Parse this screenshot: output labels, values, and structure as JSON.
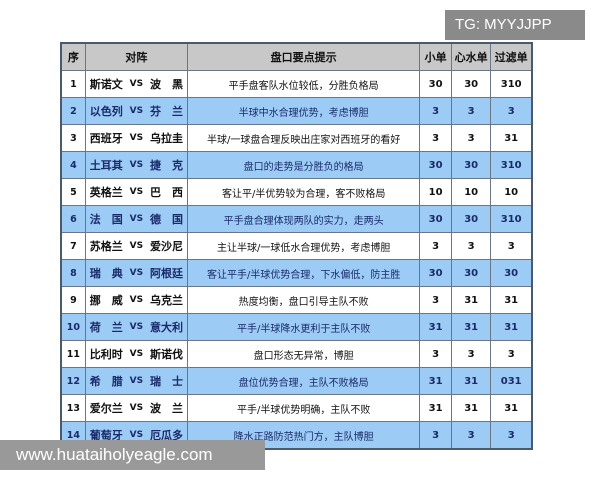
{
  "watermark_top": "TG: MYYJJPP",
  "watermark_bottom": "www.huataiholyeagle.com",
  "table": {
    "headers": [
      "序",
      "对阵",
      "盘口要点提示",
      "小单",
      "心水单",
      "过滤单"
    ],
    "rows": [
      {
        "seq": "1",
        "home": "斯诺文",
        "vs": "VS",
        "away": "波　黑",
        "tip": "平手盘客队水位较低，分胜负格局",
        "small": "30",
        "pick": "30",
        "filter": "310",
        "highlight": false
      },
      {
        "seq": "2",
        "home": "以色列",
        "vs": "VS",
        "away": "芬　兰",
        "tip": "半球中水合理优势，考虑博胆",
        "small": "3",
        "pick": "3",
        "filter": "3",
        "highlight": true
      },
      {
        "seq": "3",
        "home": "西班牙",
        "vs": "VS",
        "away": "乌拉圭",
        "tip": "半球/一球盘合理反映出庄家对西班牙的看好",
        "small": "3",
        "pick": "3",
        "filter": "31",
        "highlight": false
      },
      {
        "seq": "4",
        "home": "土耳其",
        "vs": "VS",
        "away": "捷　克",
        "tip": "盘口的走势是分胜负的格局",
        "small": "30",
        "pick": "30",
        "filter": "310",
        "highlight": true
      },
      {
        "seq": "5",
        "home": "英格兰",
        "vs": "VS",
        "away": "巴　西",
        "tip": "客让平/半优势较为合理，客不败格局",
        "small": "10",
        "pick": "10",
        "filter": "10",
        "highlight": false
      },
      {
        "seq": "6",
        "home": "法　国",
        "vs": "VS",
        "away": "德　国",
        "tip": "平手盘合理体现两队的实力，走两头",
        "small": "30",
        "pick": "30",
        "filter": "310",
        "highlight": true
      },
      {
        "seq": "7",
        "home": "苏格兰",
        "vs": "VS",
        "away": "爱沙尼",
        "tip": "主让半球/一球低水合理优势，考虑博胆",
        "small": "3",
        "pick": "3",
        "filter": "3",
        "highlight": false
      },
      {
        "seq": "8",
        "home": "瑞　典",
        "vs": "VS",
        "away": "阿根廷",
        "tip": "客让平手/半球优势合理，下水偏低，防主胜",
        "small": "30",
        "pick": "30",
        "filter": "30",
        "highlight": true
      },
      {
        "seq": "9",
        "home": "挪　威",
        "vs": "VS",
        "away": "乌克兰",
        "tip": "热度均衡，盘口引导主队不败",
        "small": "3",
        "pick": "31",
        "filter": "31",
        "highlight": false
      },
      {
        "seq": "10",
        "home": "荷　兰",
        "vs": "VS",
        "away": "意大利",
        "tip": "平手/半球降水更利于主队不败",
        "small": "31",
        "pick": "31",
        "filter": "31",
        "highlight": true
      },
      {
        "seq": "11",
        "home": "比利时",
        "vs": "VS",
        "away": "斯诺伐",
        "tip": "盘口形态无异常，博胆",
        "small": "3",
        "pick": "3",
        "filter": "3",
        "highlight": false
      },
      {
        "seq": "12",
        "home": "希　腊",
        "vs": "VS",
        "away": "瑞　士",
        "tip": "盘位优势合理，主队不败格局",
        "small": "31",
        "pick": "31",
        "filter": "031",
        "highlight": true
      },
      {
        "seq": "13",
        "home": "爱尔兰",
        "vs": "VS",
        "away": "波　兰",
        "tip": "平手/半球优势明确，主队不败",
        "small": "31",
        "pick": "31",
        "filter": "31",
        "highlight": false
      },
      {
        "seq": "14",
        "home": "葡萄牙",
        "vs": "VS",
        "away": "厄瓜多",
        "tip": "降水正路防范热门方，主队博胆",
        "small": "3",
        "pick": "3",
        "filter": "3",
        "highlight": true
      }
    ]
  },
  "colors": {
    "header_bg": "#c8c8c8",
    "highlight_row": "#9ccbf5",
    "border": "#4a5a6a"
  }
}
